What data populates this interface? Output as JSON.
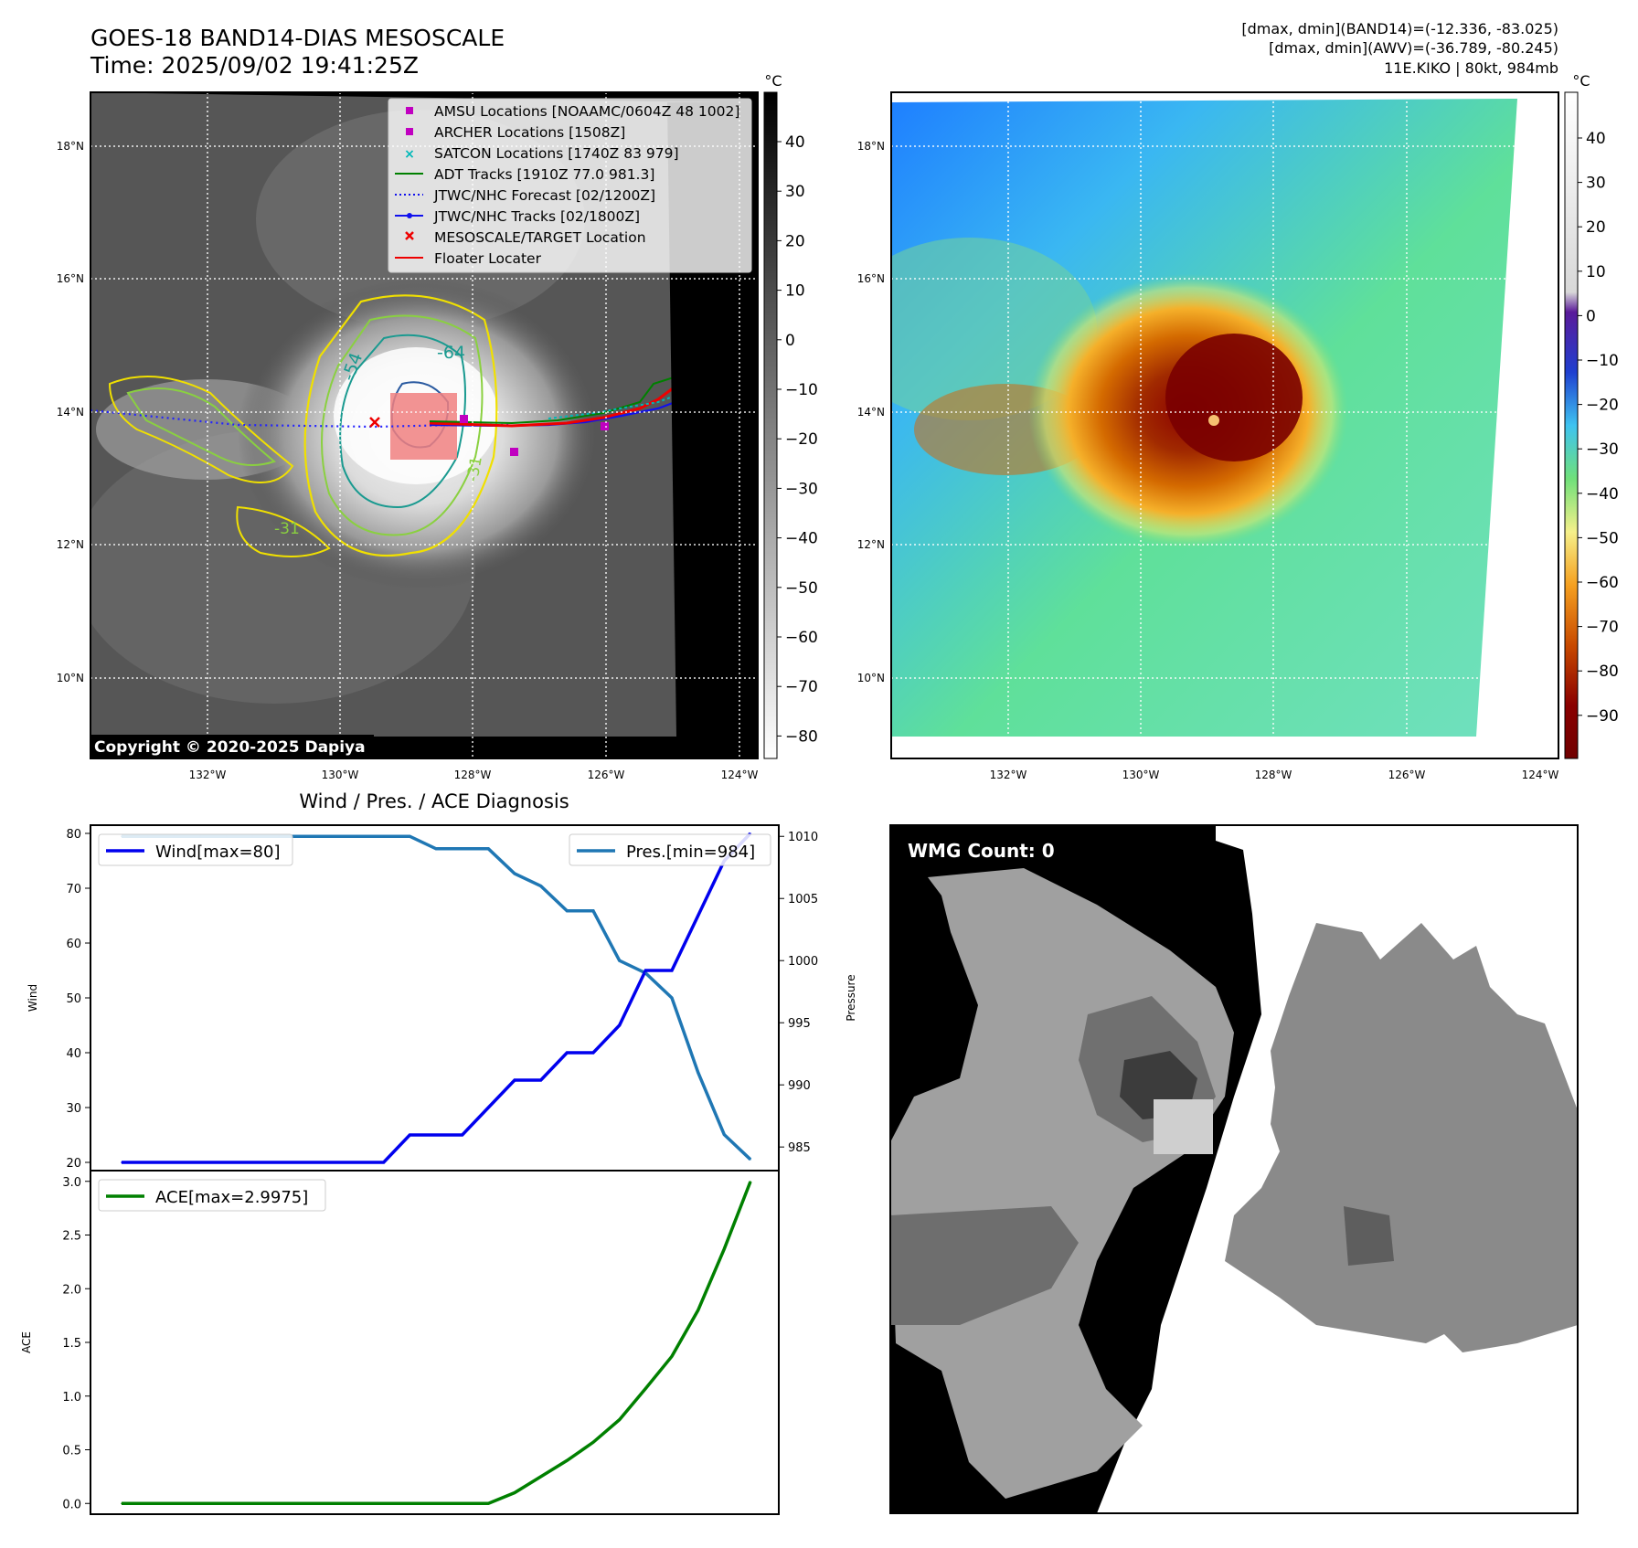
{
  "header": {
    "title_line1": "GOES-18 BAND14-DIAS MESOSCALE",
    "title_line2": "Time: 2025/09/02 19:41:25Z",
    "right_line1": "[dmax, dmin](BAND14)=(-12.336, -83.025)",
    "right_line2": "[dmax, dmin](AWV)=(-36.789, -80.245)",
    "right_line3": "11E.KIKO | 80kt, 984mb"
  },
  "map": {
    "lat_labels": [
      "18°N",
      "16°N",
      "14°N",
      "12°N",
      "10°N"
    ],
    "lon_labels": [
      "132°W",
      "130°W",
      "128°W",
      "126°W",
      "124°W"
    ],
    "copyright": "Copyright © 2020-2025 Dapiya",
    "contour_labels": [
      "-64",
      "-54",
      "-31",
      "-31"
    ]
  },
  "legend": {
    "items": [
      {
        "label": "AMSU Locations [NOAAMC/0604Z 48 1002]",
        "color": "#c000c0",
        "kind": "square"
      },
      {
        "label": "ARCHER Locations [1508Z]",
        "color": "#c000c0",
        "kind": "square"
      },
      {
        "label": "SATCON Locations [1740Z 83 979]",
        "color": "#00b8b8",
        "kind": "cross"
      },
      {
        "label": "ADT Tracks [1910Z 77.0 981.3]",
        "color": "#008000",
        "kind": "line"
      },
      {
        "label": "JTWC/NHC Forecast [02/1200Z]",
        "color": "#1010ee",
        "kind": "dotted"
      },
      {
        "label": "JTWC/NHC Tracks [02/1800Z]",
        "color": "#1010ee",
        "kind": "line-dot"
      },
      {
        "label": "MESOSCALE/TARGET Location",
        "color": "#ee0000",
        "kind": "x"
      },
      {
        "label": "Floater Locater",
        "color": "#ee0000",
        "kind": "line"
      }
    ]
  },
  "colorbar_gray": {
    "unit": "°C",
    "ticks": [
      "40",
      "30",
      "20",
      "10",
      "0",
      "−10",
      "−20",
      "−30",
      "−40",
      "−50",
      "−60",
      "−70",
      "−80"
    ]
  },
  "colorbar_color": {
    "unit": "°C",
    "ticks": [
      "40",
      "30",
      "20",
      "10",
      "0",
      "−10",
      "−20",
      "−30",
      "−40",
      "−50",
      "−60",
      "−70",
      "−80",
      "−90"
    ]
  },
  "chart_data": [
    {
      "type": "line",
      "title": "Wind / Pres. / ACE Diagnosis",
      "xlabel": "",
      "ylabel": "Wind",
      "ylabel2": "Pressure",
      "x": [
        0,
        1,
        2,
        3,
        4,
        5,
        6,
        7,
        8,
        9,
        10,
        11,
        12,
        13,
        14,
        15,
        16,
        17,
        18,
        19,
        20,
        21,
        22,
        23,
        24
      ],
      "series": [
        {
          "name": "Wind[max=80]",
          "axis": "left",
          "color": "#0000ee",
          "values": [
            20,
            20,
            20,
            20,
            20,
            20,
            20,
            20,
            20,
            20,
            20,
            25,
            25,
            25,
            30,
            35,
            35,
            40,
            40,
            45,
            55,
            55,
            65,
            75,
            80
          ]
        },
        {
          "name": "Pres.[min=984]",
          "axis": "right",
          "color": "#1f77b4",
          "values": [
            1010,
            1010,
            1010,
            1010,
            1010,
            1010,
            1010,
            1010,
            1010,
            1010,
            1010,
            1010,
            1009,
            1009,
            1009,
            1007,
            1006,
            1004,
            1004,
            1000,
            999,
            997,
            991,
            986,
            984
          ]
        }
      ],
      "ylim": [
        18.5,
        81.5
      ],
      "yticks": [
        "80",
        "70",
        "60",
        "50",
        "40",
        "30",
        "20"
      ],
      "ylim2": [
        983.1,
        1010.9
      ],
      "yticks2": [
        "1010",
        "1005",
        "1000",
        "995",
        "990",
        "985"
      ]
    },
    {
      "type": "line",
      "ylabel": "ACE",
      "x": [
        0,
        1,
        2,
        3,
        4,
        5,
        6,
        7,
        8,
        9,
        10,
        11,
        12,
        13,
        14,
        15,
        16,
        17,
        18,
        19,
        20,
        21,
        22,
        23,
        24
      ],
      "series": [
        {
          "name": "ACE[max=2.9975]",
          "color": "#008000",
          "values": [
            0,
            0,
            0,
            0,
            0,
            0,
            0,
            0,
            0,
            0,
            0,
            0,
            0,
            0,
            0,
            0.1,
            0.25,
            0.4,
            0.57,
            0.78,
            1.07,
            1.37,
            1.8,
            2.37,
            2.9975
          ]
        }
      ],
      "ylim": [
        -0.1,
        3.1
      ],
      "yticks": [
        "3.0",
        "2.5",
        "2.0",
        "1.5",
        "1.0",
        "0.5",
        "0.0"
      ]
    }
  ],
  "wmg": {
    "label": "WMG Count: 0"
  }
}
